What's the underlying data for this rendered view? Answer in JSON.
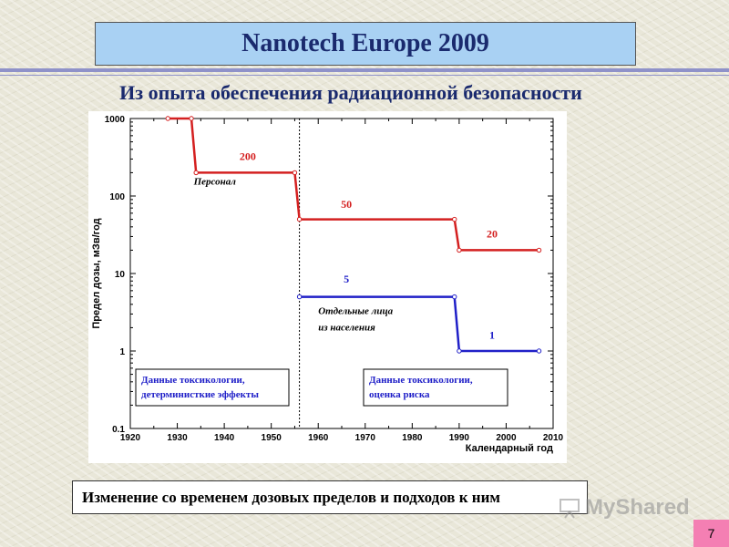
{
  "slide": {
    "title": "Nanotech Europe 2009",
    "subtitle": "Из опыта обеспечения радиационной безопасности",
    "caption": "Изменение со временем дозовых пределов и подходов к ним",
    "page_number": "7",
    "watermark": "MyShared"
  },
  "colors": {
    "title_bg": "#a9d1f3",
    "title_text": "#1a2a6e",
    "personnel_series": "#d42020",
    "public_series": "#2020c8",
    "badge": "#f47fb3"
  },
  "chart_data": {
    "type": "line",
    "title": "",
    "xlabel": "Календарный год",
    "ylabel": "Предел дозы, мЗв/год",
    "xlim": [
      1920,
      2010
    ],
    "ylim": [
      0.1,
      1000
    ],
    "yscale": "log",
    "x_ticks": [
      "1920",
      "1930",
      "1940",
      "1950",
      "1960",
      "1970",
      "1980",
      "1990",
      "2000",
      "2010"
    ],
    "y_ticks": [
      "0.1",
      "1",
      "10",
      "100",
      "1000"
    ],
    "grid": false,
    "vertical_marker_x": 1956,
    "series": [
      {
        "name": "Персонал",
        "points": [
          [
            1928,
            1000
          ],
          [
            1933,
            1000
          ],
          [
            1934,
            200
          ],
          [
            1955,
            200
          ],
          [
            1956,
            50
          ],
          [
            1989,
            50
          ],
          [
            1990,
            20
          ],
          [
            2007,
            20
          ]
        ]
      },
      {
        "name": "Отдельные лица из населения",
        "points": [
          [
            1956,
            5
          ],
          [
            1989,
            5
          ],
          [
            1990,
            1
          ],
          [
            2007,
            1
          ]
        ]
      }
    ],
    "value_labels": [
      {
        "text": "200",
        "x": 1945,
        "y": 290
      },
      {
        "text": "50",
        "x": 1966,
        "y": 70
      },
      {
        "text": "20",
        "x": 1997,
        "y": 29
      },
      {
        "text": "5",
        "x": 1966,
        "y": 7.6
      },
      {
        "text": "1",
        "x": 1997,
        "y": 1.45
      }
    ],
    "series_label_personnel": "Персонал",
    "series_label_public_line1": "Отдельные лица",
    "series_label_public_line2": "из населения",
    "annotation_left_line1": "Данные токсикологии,",
    "annotation_left_line2": "детерминисткие эффекты",
    "annotation_right_line1": "Данные токсикологии,",
    "annotation_right_line2": "оценка риска"
  }
}
